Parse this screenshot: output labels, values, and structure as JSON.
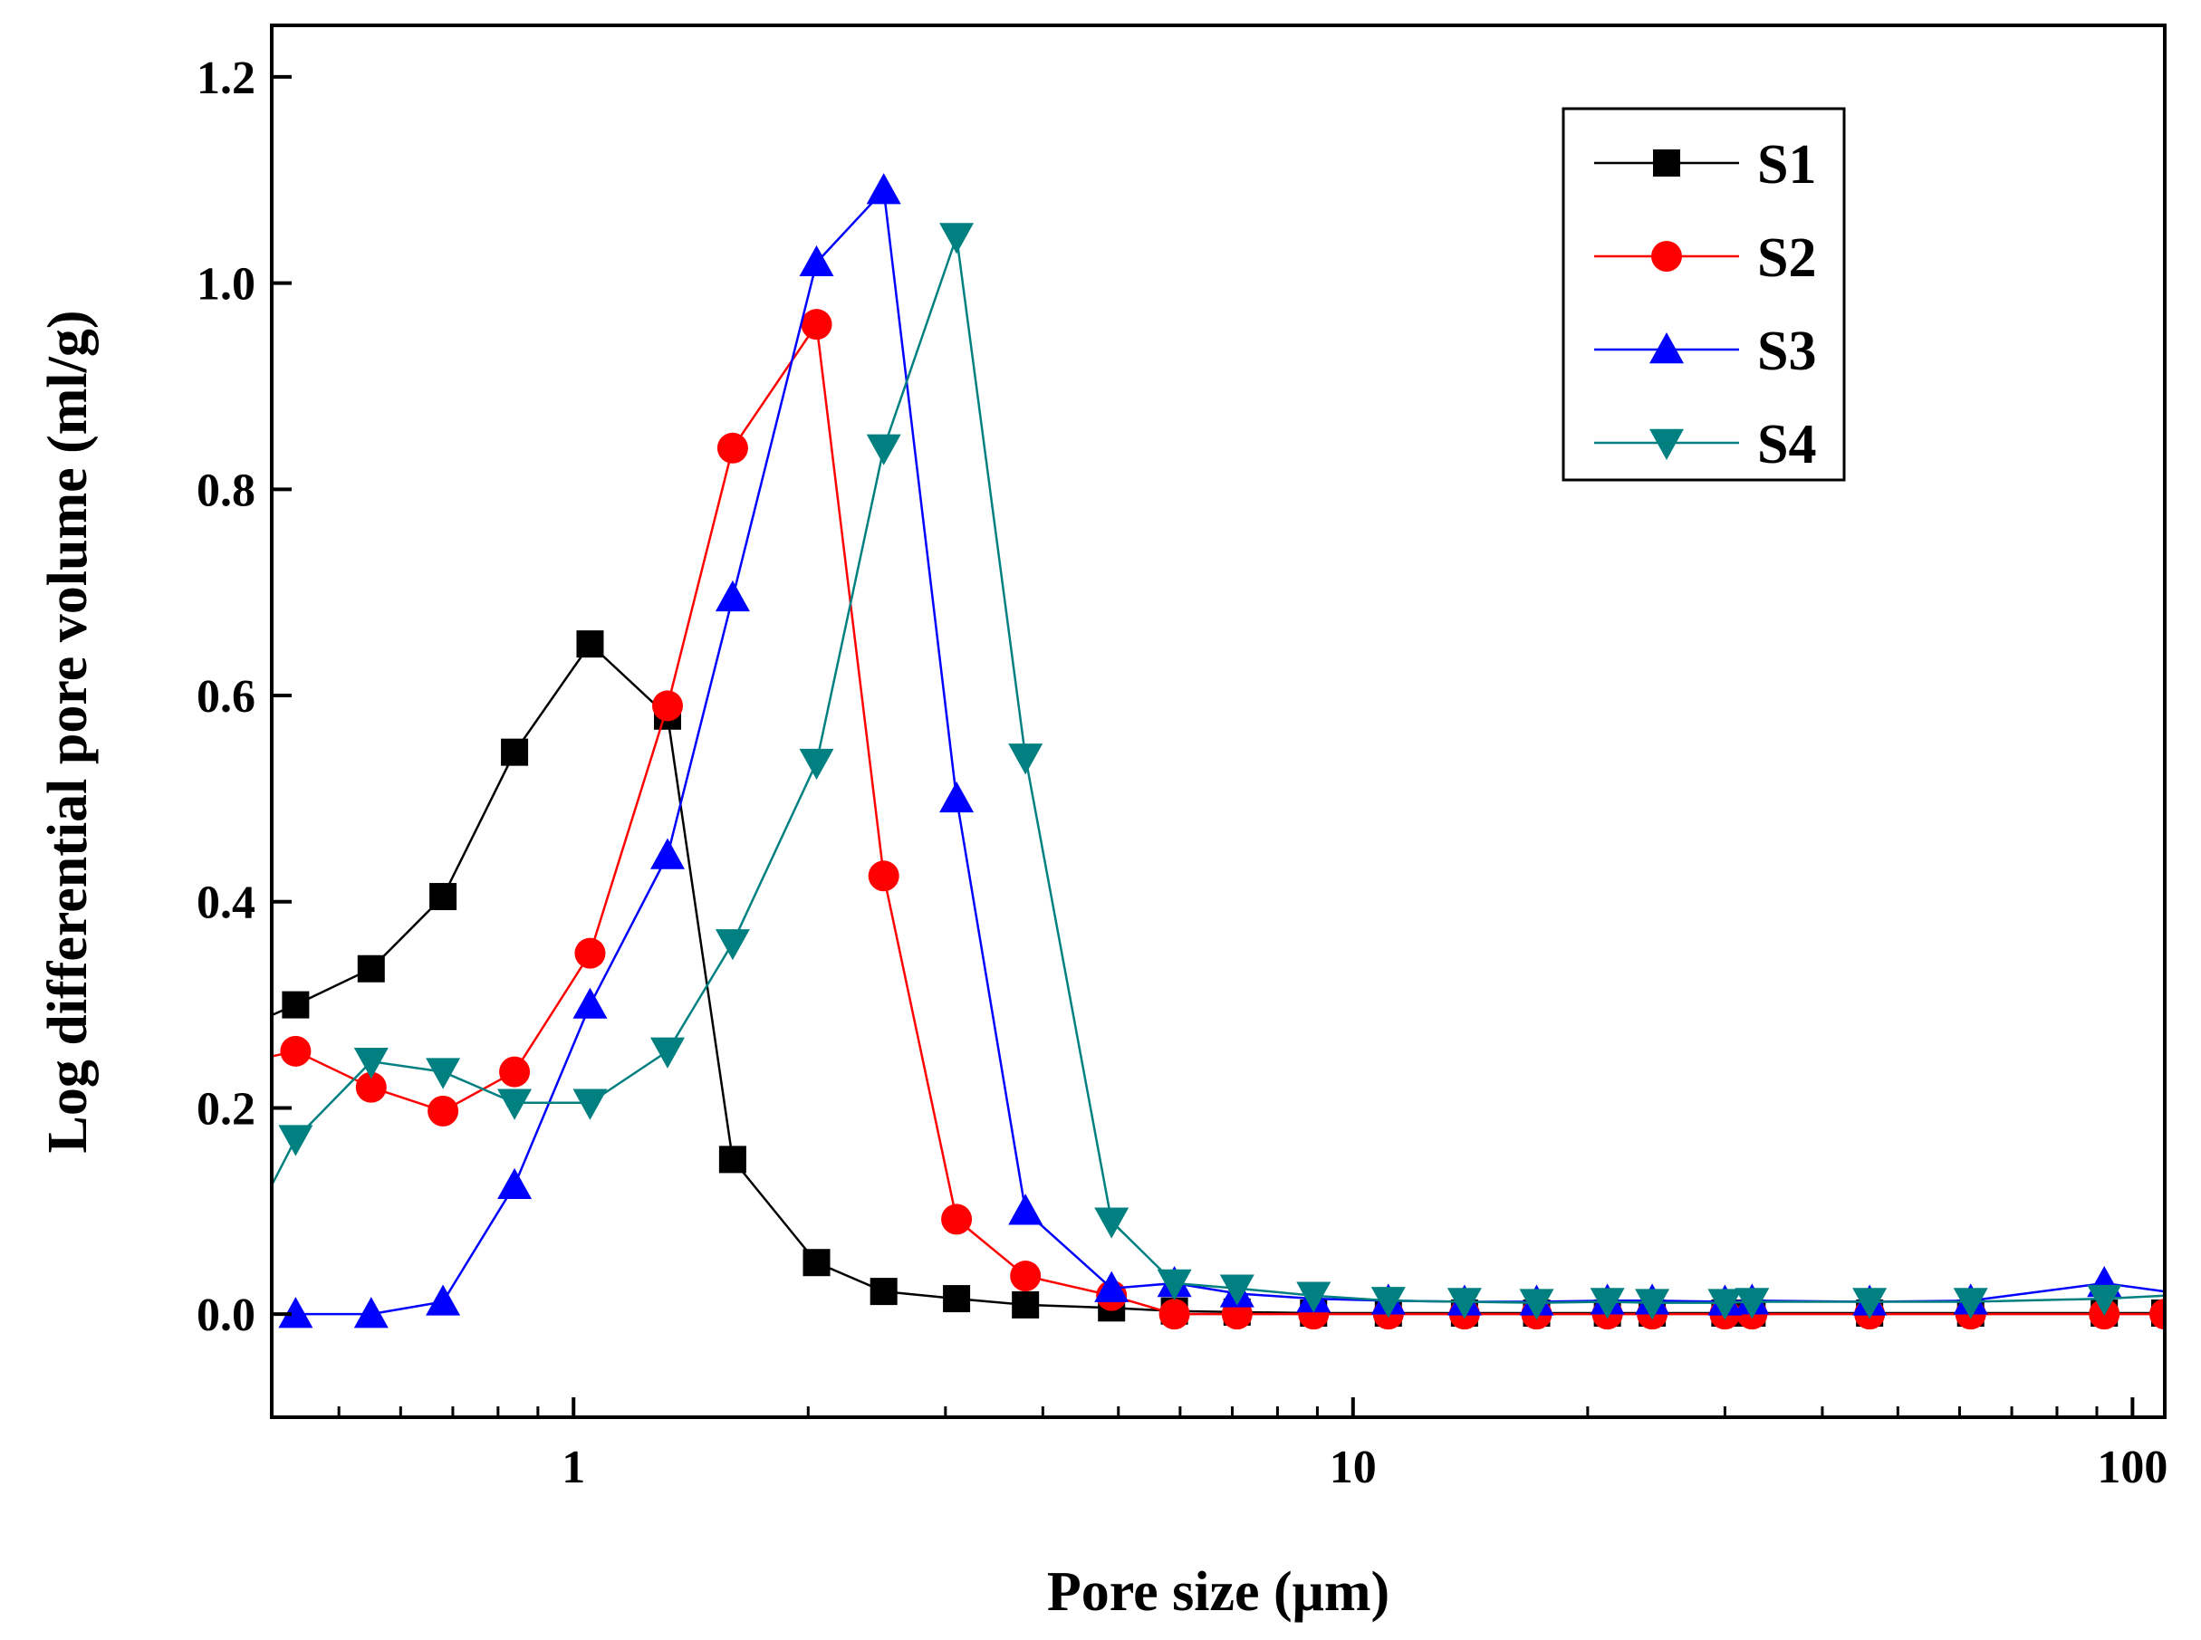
{
  "chart_data": {
    "type": "line",
    "x_scale": "log",
    "xlabel": "Pore size (μm)",
    "ylabel": "Log differential pore volume (ml/g)",
    "xlim": [
      0.41,
      110
    ],
    "ylim": [
      -0.1,
      1.25
    ],
    "x_ticks": [
      1,
      10,
      100
    ],
    "x_tick_labels": [
      "1",
      "10",
      "100"
    ],
    "y_ticks": [
      0.0,
      0.2,
      0.4,
      0.6,
      0.8,
      1.0,
      1.2
    ],
    "y_tick_labels": [
      "0.0",
      "0.2",
      "0.4",
      "0.6",
      "0.8",
      "1.0",
      "1.2"
    ],
    "legend_position": "top-right",
    "series": [
      {
        "name": "S1",
        "color": "#000000",
        "marker": "square",
        "x": [
          0.41,
          0.44,
          0.55,
          0.68,
          0.84,
          1.05,
          1.32,
          1.6,
          2.05,
          2.5,
          3.1,
          3.8,
          4.9,
          5.9,
          7.1,
          8.9,
          11.1,
          13.9,
          17.2,
          21.2,
          24.2,
          30,
          32.5,
          46,
          62,
          92,
          110
        ],
        "y": [
          0.29,
          0.3,
          0.335,
          0.405,
          0.545,
          0.65,
          0.58,
          0.15,
          0.05,
          0.022,
          0.015,
          0.009,
          0.006,
          0.003,
          0.002,
          0.001,
          0.001,
          0.001,
          0.001,
          0.001,
          0.001,
          0.001,
          0.001,
          0.001,
          0.001,
          0.001,
          0.001
        ],
        "marker_from": 1,
        "marker_to": 26
      },
      {
        "name": "S2",
        "color": "#ff0000",
        "marker": "circle",
        "x": [
          0.41,
          0.44,
          0.55,
          0.68,
          0.84,
          1.05,
          1.32,
          1.6,
          2.05,
          2.5,
          3.1,
          3.8,
          4.9,
          5.9,
          7.1,
          8.9,
          11.1,
          13.9,
          17.2,
          21.2,
          24.2,
          30,
          32.5,
          46,
          62,
          92,
          110
        ],
        "y": [
          0.25,
          0.255,
          0.22,
          0.197,
          0.235,
          0.35,
          0.59,
          0.84,
          0.96,
          0.425,
          0.092,
          0.037,
          0.018,
          0.0,
          0.0,
          0.0,
          0.0,
          0.0,
          0.0,
          0.0,
          0.0,
          0.0,
          0.0,
          0.0,
          0.0,
          0.0,
          0.0
        ],
        "marker_from": 1,
        "marker_to": 26
      },
      {
        "name": "S3",
        "color": "#0000ff",
        "marker": "triangle-up",
        "x": [
          0.44,
          0.55,
          0.68,
          0.84,
          1.05,
          1.32,
          1.6,
          2.05,
          2.5,
          3.1,
          3.8,
          4.9,
          5.9,
          7.1,
          8.9,
          11.1,
          13.9,
          17.2,
          21.2,
          24.2,
          30,
          32.5,
          46,
          62,
          92,
          110
        ],
        "y": [
          0.0,
          0.0,
          0.012,
          0.125,
          0.3,
          0.445,
          0.695,
          1.02,
          1.09,
          0.5,
          0.1,
          0.025,
          0.03,
          0.02,
          0.015,
          0.013,
          0.012,
          0.012,
          0.013,
          0.013,
          0.012,
          0.013,
          0.012,
          0.013,
          0.03,
          0.022
        ],
        "marker_from": 0,
        "marker_to": 24
      },
      {
        "name": "S4",
        "color": "#008080",
        "marker": "triangle-down",
        "x": [
          0.41,
          0.44,
          0.55,
          0.68,
          0.84,
          1.05,
          1.32,
          1.6,
          2.05,
          2.5,
          3.1,
          3.8,
          4.9,
          5.9,
          7.1,
          8.9,
          11.1,
          13.9,
          17.2,
          21.2,
          24.2,
          30,
          32.5,
          46,
          62,
          92,
          110
        ],
        "y": [
          0.125,
          0.17,
          0.245,
          0.235,
          0.205,
          0.205,
          0.255,
          0.36,
          0.535,
          0.84,
          1.045,
          0.54,
          0.09,
          0.03,
          0.025,
          0.018,
          0.013,
          0.012,
          0.011,
          0.012,
          0.011,
          0.011,
          0.012,
          0.012,
          0.012,
          0.015,
          0.018
        ],
        "marker_from": 1,
        "marker_to": 25
      }
    ]
  }
}
